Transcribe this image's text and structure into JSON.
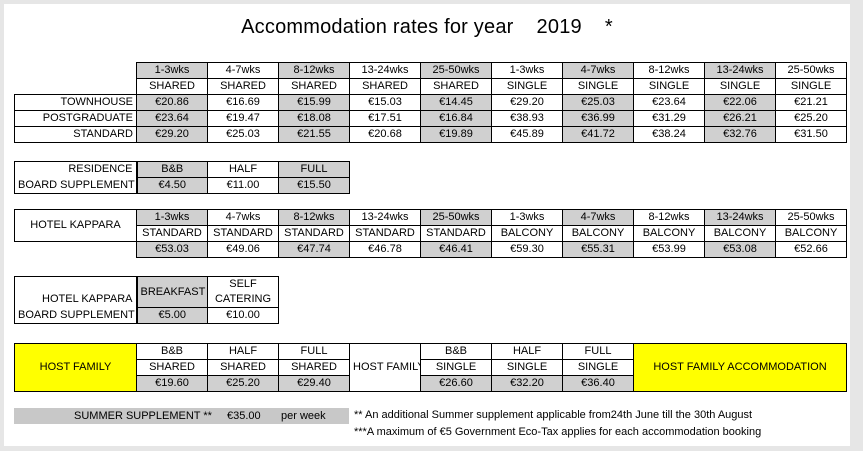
{
  "title": "Accommodation rates for year",
  "year": "2019",
  "star": "*",
  "rates": {
    "periods": [
      "1-3wks",
      "4-7wks",
      "8-12wks",
      "13-24wks",
      "25-50wks",
      "1-3wks",
      "4-7wks",
      "8-12wks",
      "13-24wks",
      "25-50wks"
    ],
    "types": [
      "SHARED",
      "SHARED",
      "SHARED",
      "SHARED",
      "SHARED",
      "SINGLE",
      "SINGLE",
      "SINGLE",
      "SINGLE",
      "SINGLE"
    ],
    "rows": [
      {
        "label": "TOWNHOUSE",
        "values": [
          "€20.86",
          "€16.69",
          "€15.99",
          "€15.03",
          "€14.45",
          "€29.20",
          "€25.03",
          "€23.64",
          "€22.06",
          "€21.21"
        ]
      },
      {
        "label": "POSTGRADUATE",
        "values": [
          "€23.64",
          "€19.47",
          "€18.08",
          "€17.51",
          "€16.84",
          "€38.93",
          "€36.99",
          "€31.29",
          "€26.21",
          "€25.20"
        ]
      },
      {
        "label": "STANDARD",
        "values": [
          "€29.20",
          "€25.03",
          "€21.55",
          "€20.68",
          "€19.89",
          "€45.89",
          "€41.72",
          "€38.24",
          "€32.76",
          "€31.50"
        ]
      }
    ]
  },
  "residence": {
    "label1": "RESIDENCE",
    "label2": "BOARD SUPPLEMENT",
    "headers": [
      "B&B",
      "HALF",
      "FULL"
    ],
    "values": [
      "€4.50",
      "€11.00",
      "€15.50"
    ]
  },
  "hotel": {
    "label": "HOTEL KAPPARA",
    "periods": [
      "1-3wks",
      "4-7wks",
      "8-12wks",
      "13-24wks",
      "25-50wks",
      "1-3wks",
      "4-7wks",
      "8-12wks",
      "13-24wks",
      "25-50wks"
    ],
    "types": [
      "STANDARD",
      "STANDARD",
      "STANDARD",
      "STANDARD",
      "STANDARD",
      "BALCONY",
      "BALCONY",
      "BALCONY",
      "BALCONY",
      "BALCONY"
    ],
    "values": [
      "€53.03",
      "€49.06",
      "€47.74",
      "€46.78",
      "€46.41",
      "€59.30",
      "€55.31",
      "€53.99",
      "€53.08",
      "€52.66"
    ]
  },
  "hotel_board": {
    "label1": "HOTEL KAPPARA",
    "label2": "BOARD SUPPLEMENT",
    "breakfast": "BREAKFAST",
    "self1": "SELF",
    "self2": "CATERING",
    "values": [
      "€5.00",
      "€10.00"
    ]
  },
  "host": {
    "label": "HOST FAMILY",
    "shared_headers": [
      "B&B",
      "HALF",
      "FULL"
    ],
    "shared_types": [
      "SHARED",
      "SHARED",
      "SHARED"
    ],
    "shared_values": [
      "€19.60",
      "€25.20",
      "€29.40"
    ],
    "mid_label": "HOST FAMILY",
    "single_headers": [
      "B&B",
      "HALF",
      "FULL"
    ],
    "single_types": [
      "SINGLE",
      "SINGLE",
      "SINGLE"
    ],
    "single_values": [
      "€26.60",
      "€32.20",
      "€36.40"
    ],
    "right_label": "HOST FAMILY ACCOMMODATION"
  },
  "summer": {
    "label": "SUMMER SUPPLEMENT **",
    "amount": "€35.00",
    "unit": "per week"
  },
  "notes": [
    "** An additional Summer supplement applicable from24th June till the 30th August",
    "***A maximum of €5 Government Eco-Tax applies for each accommodation booking"
  ],
  "colors": {
    "grey": "#d0d0d0",
    "yellow": "#ffff00",
    "background": "#e6e6e6"
  }
}
